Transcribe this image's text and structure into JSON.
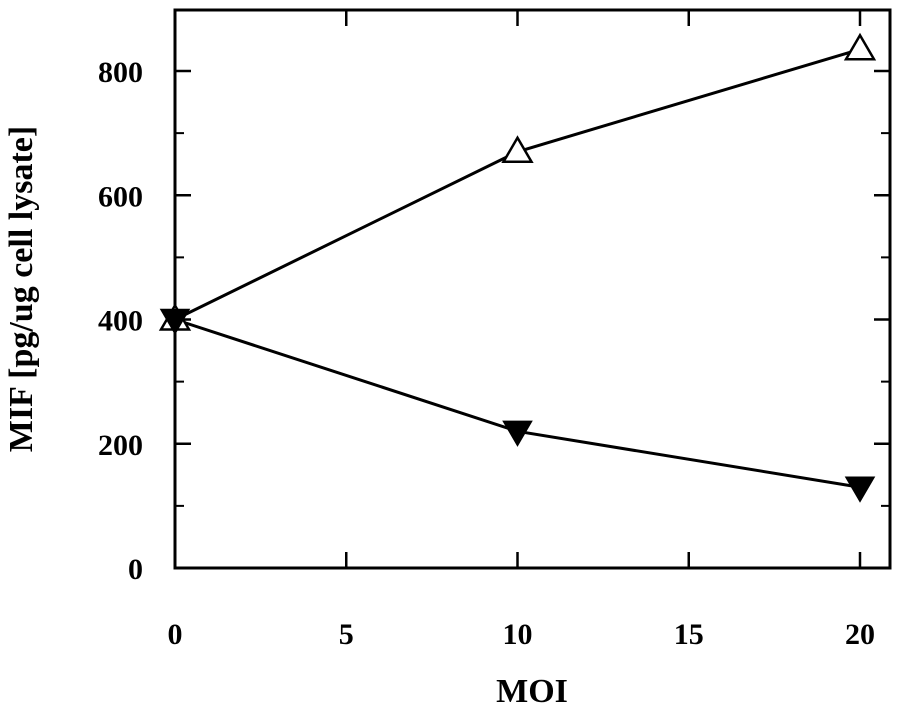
{
  "chart_data": {
    "type": "line",
    "xlabel": "MOI",
    "ylabel": "MIF [pg/ug cell lysate]",
    "xlim": [
      0,
      20
    ],
    "ylim": [
      0,
      900
    ],
    "xticks": [
      0,
      5,
      10,
      15,
      20
    ],
    "xtick_labels": [
      "0",
      "5",
      "10",
      "15",
      "20"
    ],
    "yticks": [
      0,
      200,
      400,
      600,
      800
    ],
    "ytick_labels": [
      "0",
      "200",
      "400",
      "600",
      "800"
    ],
    "grid": false,
    "legend": "none",
    "series": [
      {
        "marker": "open-triangle-up",
        "color": "#000000",
        "x": [
          0,
          10,
          20
        ],
        "y": [
          400,
          670,
          835
        ]
      },
      {
        "marker": "filled-triangle-down",
        "color": "#000000",
        "x": [
          0,
          10,
          20
        ],
        "y": [
          400,
          220,
          130
        ]
      }
    ]
  }
}
